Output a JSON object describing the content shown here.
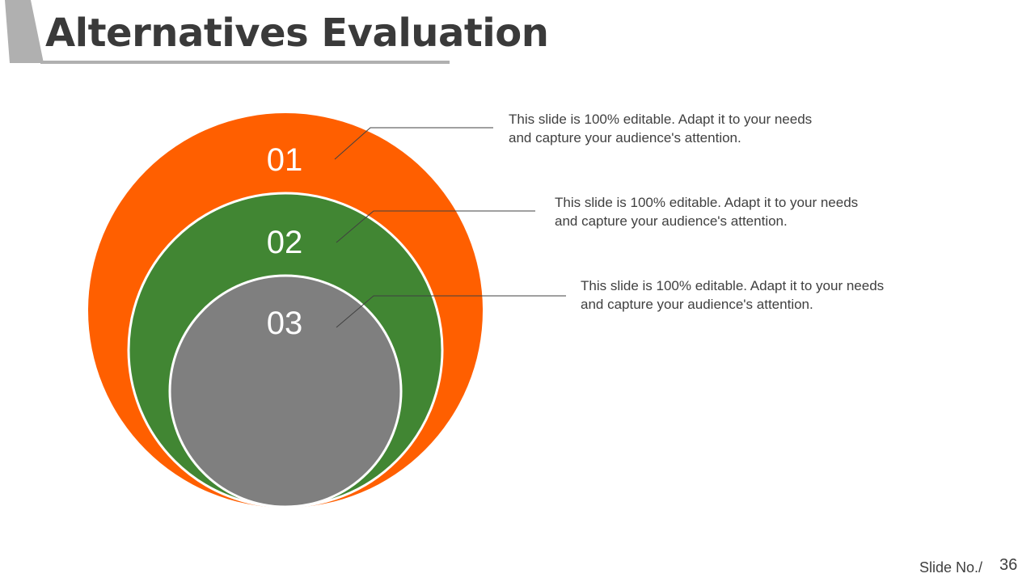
{
  "slide": {
    "title": "Alternatives Evaluation",
    "slide_no_label": "Slide No./",
    "slide_no": "36"
  },
  "colors": {
    "title": "#3a3a3a",
    "title_accent": "#b0b0b0",
    "circle_1": "#ff5f00",
    "circle_2": "#418633",
    "circle_3": "#7f7f7f",
    "leader_line": "#404040",
    "text": "#404040"
  },
  "items": [
    {
      "number": "01",
      "line1": "This slide is 100% editable. Adapt it to your needs",
      "line2": "and capture your audience's attention."
    },
    {
      "number": "02",
      "line1": "This slide is 100% editable. Adapt it to your needs",
      "line2": "and capture your audience's attention."
    },
    {
      "number": "03",
      "line1": "This slide is 100% editable. Adapt it to your needs",
      "line2": "and capture your audience's attention."
    }
  ]
}
